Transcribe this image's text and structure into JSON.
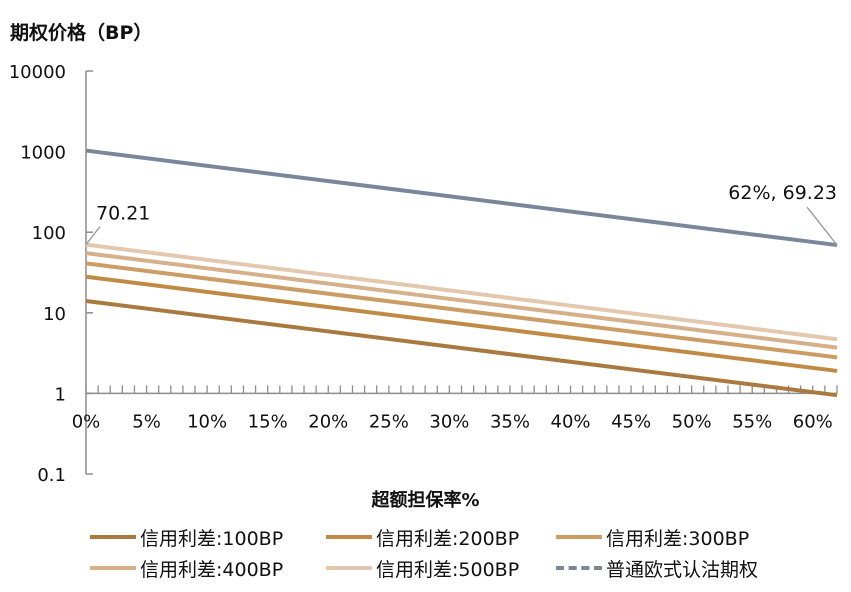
{
  "chart_data": {
    "type": "line",
    "ylabel": "期权价格（BP）",
    "xlabel": "超额担保率%",
    "yscale": "log",
    "ylim": [
      0.1,
      10000
    ],
    "xlim": [
      0,
      0.62
    ],
    "y_ticks": [
      "10000",
      "1000",
      "100",
      "10",
      "1",
      "0.1"
    ],
    "x_ticks": [
      "0%",
      "5%",
      "10%",
      "15%",
      "20%",
      "25%",
      "30%",
      "35%",
      "40%",
      "45%",
      "50%",
      "55%",
      "60%"
    ],
    "x_tick_values": [
      0,
      0.05,
      0.1,
      0.15,
      0.2,
      0.25,
      0.3,
      0.35,
      0.4,
      0.45,
      0.5,
      0.55,
      0.6
    ],
    "series": [
      {
        "name": "信用利差:100BP",
        "color": "#a9793f",
        "dashed": false,
        "x": [
          0,
          0.62
        ],
        "y": [
          14.0,
          0.95
        ]
      },
      {
        "name": "信用利差:200BP",
        "color": "#c08a45",
        "dashed": false,
        "x": [
          0,
          0.62
        ],
        "y": [
          28.0,
          1.9
        ]
      },
      {
        "name": "信用利差:300BP",
        "color": "#cc9c65",
        "dashed": false,
        "x": [
          0,
          0.62
        ],
        "y": [
          41.0,
          2.8
        ]
      },
      {
        "name": "信用利差:400BP",
        "color": "#d6b08a",
        "dashed": false,
        "x": [
          0,
          0.62
        ],
        "y": [
          55.0,
          3.7
        ]
      },
      {
        "name": "信用利差:500BP",
        "color": "#e3c8ae",
        "dashed": false,
        "x": [
          0,
          0.62
        ],
        "y": [
          70.21,
          4.7
        ]
      },
      {
        "name": "普通欧式认沽期权",
        "color": "#7a879b",
        "dashed": true,
        "x": [
          0,
          0.62
        ],
        "y": [
          1030,
          69.23
        ]
      }
    ],
    "annotations": [
      {
        "text": "70.21",
        "x": 0,
        "y": 70.21
      },
      {
        "text": "62%, 69.23",
        "x": 0.62,
        "y": 69.23
      }
    ],
    "legend_position": "bottom"
  }
}
